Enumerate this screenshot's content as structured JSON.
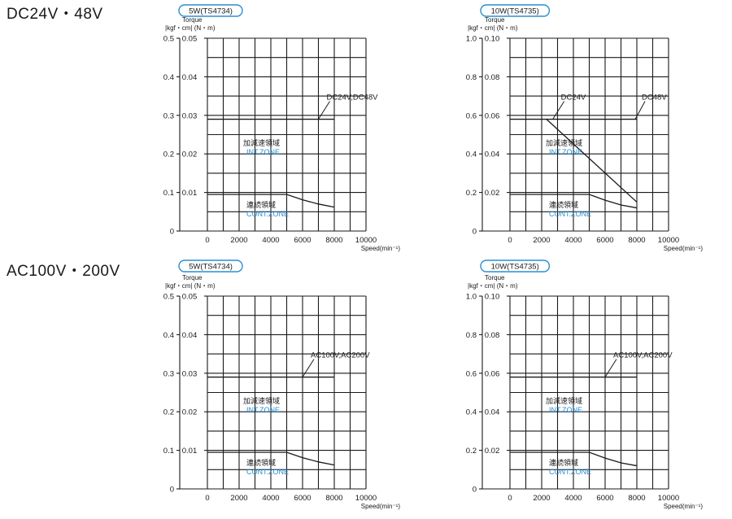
{
  "sections": {
    "dc_title": "DC24V・48V",
    "ac_title": "AC100V・200V"
  },
  "chart_data": [
    {
      "type": "line",
      "badge": "5W(TS4734)",
      "ylabel_top": "Torque",
      "ylabel_units": "|kgf・cm| (N・m)",
      "xlabel": "Speed(min⁻¹)",
      "x_ticks": [
        "0",
        "2000",
        "4000",
        "6000",
        "8000",
        "10000"
      ],
      "xlim": [
        0,
        10000
      ],
      "y_ticks_kgf": [
        "0",
        "0.1",
        "0.2",
        "0.3",
        "0.4",
        "0.5"
      ],
      "y_ticks_nm": [
        "0.01",
        "0.02",
        "0.03",
        "0.04",
        "0.05"
      ],
      "ylim_nm": [
        0,
        0.05
      ],
      "grid": true,
      "series": [
        {
          "x": [
            0,
            8000
          ],
          "y": [
            0.029,
            0.029
          ]
        },
        {
          "x": [
            0,
            5000,
            6000,
            7000,
            8000
          ],
          "y": [
            0.0095,
            0.0095,
            0.0081,
            0.007,
            0.0062
          ]
        }
      ],
      "annotations": [
        {
          "text": "DC24V,DC48V",
          "x": 7000,
          "y": 0.029
        }
      ],
      "zone_int_jp": "加減速領域",
      "zone_int_en": "INT.ZONE",
      "zone_cont_jp": "連続領域",
      "zone_cont_en": "CONT.ZONE"
    },
    {
      "type": "line",
      "badge": "10W(TS4735)",
      "ylabel_top": "Torque",
      "ylabel_units": "|kgf・cm| (N・m)",
      "xlabel": "Speed(min⁻¹)",
      "x_ticks": [
        "0",
        "2000",
        "4000",
        "6000",
        "8000",
        "10000"
      ],
      "xlim": [
        0,
        10000
      ],
      "y_ticks_kgf": [
        "0",
        "0.2",
        "0.4",
        "0.6",
        "0.8",
        "1.0"
      ],
      "y_ticks_nm": [
        "0.02",
        "0.04",
        "0.06",
        "0.08",
        "0.10"
      ],
      "ylim_nm": [
        0,
        0.1
      ],
      "grid": true,
      "series": [
        {
          "x": [
            0,
            8000
          ],
          "y": [
            0.058,
            0.058
          ]
        },
        {
          "x": [
            2300,
            8000
          ],
          "y": [
            0.058,
            0.015
          ]
        },
        {
          "x": [
            0,
            5000,
            6000,
            7000,
            8000
          ],
          "y": [
            0.019,
            0.019,
            0.016,
            0.0135,
            0.012
          ]
        }
      ],
      "annotations": [
        {
          "text": "DC24V",
          "x": 2700,
          "y": 0.058
        },
        {
          "text": "DC48V",
          "x": 7900,
          "y": 0.058
        }
      ],
      "zone_int_jp": "加減速領域",
      "zone_int_en": "INT.ZONE",
      "zone_cont_jp": "連続領域",
      "zone_cont_en": "CONT.ZONE"
    },
    {
      "type": "line",
      "badge": "5W(TS4734)",
      "ylabel_top": "Torque",
      "ylabel_units": "|kgf・cm| (N・m)",
      "xlabel": "Speed(min⁻¹)",
      "x_ticks": [
        "0",
        "2000",
        "4000",
        "6000",
        "8000",
        "10000"
      ],
      "xlim": [
        0,
        10000
      ],
      "y_ticks_kgf": [
        "0",
        "0.1",
        "0.2",
        "0.3",
        "0.4",
        "0.5"
      ],
      "y_ticks_nm": [
        "0.01",
        "0.02",
        "0.03",
        "0.04",
        "0.05"
      ],
      "ylim_nm": [
        0,
        0.05
      ],
      "grid": true,
      "series": [
        {
          "x": [
            0,
            8000
          ],
          "y": [
            0.029,
            0.029
          ]
        },
        {
          "x": [
            0,
            5000,
            6000,
            7000,
            8000
          ],
          "y": [
            0.0095,
            0.0095,
            0.0081,
            0.007,
            0.0062
          ]
        }
      ],
      "annotations": [
        {
          "text": "AC100V,AC200V",
          "x": 6000,
          "y": 0.029
        }
      ],
      "zone_int_jp": "加減速領域",
      "zone_int_en": "INT.ZONE",
      "zone_cont_jp": "連続領域",
      "zone_cont_en": "CONT.ZONE"
    },
    {
      "type": "line",
      "badge": "10W(TS4735)",
      "ylabel_top": "Torque",
      "ylabel_units": "|kgf・cm| (N・m)",
      "xlabel": "Speed(min⁻¹)",
      "x_ticks": [
        "0",
        "2000",
        "4000",
        "6000",
        "8000",
        "10000"
      ],
      "xlim": [
        0,
        10000
      ],
      "y_ticks_kgf": [
        "0",
        "0.2",
        "0.4",
        "0.6",
        "0.8",
        "1.0"
      ],
      "y_ticks_nm": [
        "0.02",
        "0.04",
        "0.06",
        "0.08",
        "0.10"
      ],
      "ylim_nm": [
        0,
        0.1
      ],
      "grid": true,
      "series": [
        {
          "x": [
            0,
            8000
          ],
          "y": [
            0.058,
            0.058
          ]
        },
        {
          "x": [
            0,
            5000,
            6000,
            7000,
            8000
          ],
          "y": [
            0.019,
            0.019,
            0.016,
            0.0135,
            0.012
          ]
        }
      ],
      "annotations": [
        {
          "text": "AC100V,AC200V",
          "x": 6000,
          "y": 0.058
        }
      ],
      "zone_int_jp": "加減速領域",
      "zone_int_en": "INT.ZONE",
      "zone_cont_jp": "連続領域",
      "zone_cont_en": "CONT.ZONE"
    }
  ]
}
